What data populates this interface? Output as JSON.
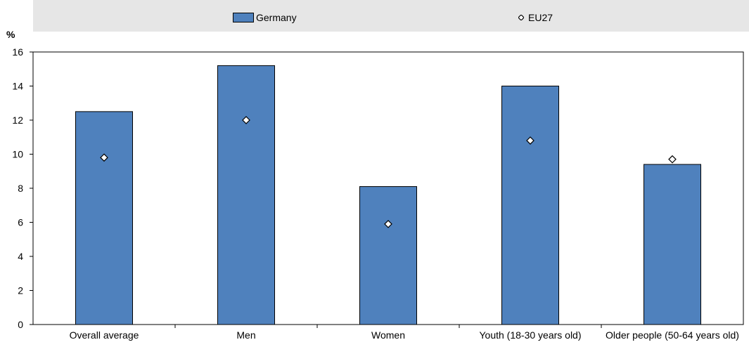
{
  "legend": {
    "germany_label": "Germany",
    "eu_label": "EU27"
  },
  "colors": {
    "bar_fill": "#4f81bd",
    "legend_bg": "#e6e6e6",
    "grid": "#ffffff"
  },
  "chart_data": {
    "type": "bar",
    "ylabel": "%",
    "ylim": [
      0,
      16
    ],
    "yticks": [
      "0",
      "2",
      "4",
      "6",
      "8",
      "10",
      "12",
      "14",
      "16"
    ],
    "categories": [
      "Overall average",
      "Men",
      "Women",
      "Youth (18-30 years old)",
      "Older people (50-64 years old)"
    ],
    "series": [
      {
        "name": "Germany",
        "kind": "bar",
        "values": [
          12.5,
          15.2,
          8.1,
          14.0,
          9.4
        ]
      },
      {
        "name": "EU27",
        "kind": "marker",
        "marker": "diamond",
        "values": [
          9.8,
          12.0,
          5.9,
          10.8,
          9.7
        ]
      }
    ],
    "legend_position": "top",
    "grid": false
  }
}
